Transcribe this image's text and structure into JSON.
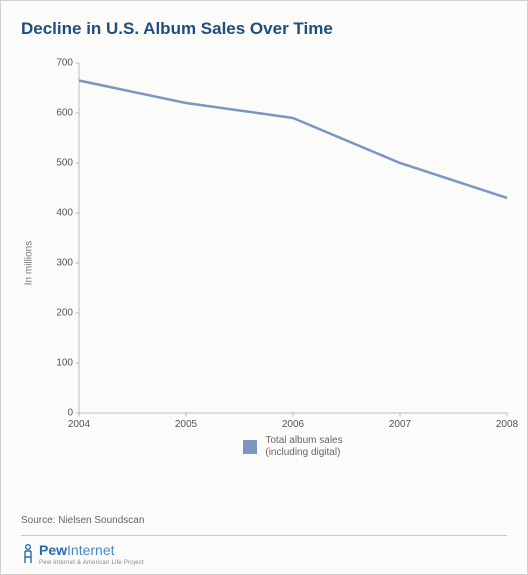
{
  "title": "Decline in U.S. Album Sales Over Time",
  "chart": {
    "type": "line",
    "ylabel": "In millions",
    "x_values": [
      2004,
      2005,
      2006,
      2007,
      2008
    ],
    "y_values": [
      665,
      620,
      590,
      500,
      430
    ],
    "xlim": [
      2004,
      2008
    ],
    "ylim": [
      0,
      700
    ],
    "xticks": [
      2004,
      2005,
      2006,
      2007,
      2008
    ],
    "yticks": [
      0,
      100,
      200,
      300,
      400,
      500,
      600,
      700
    ],
    "line_color": "#7a96c2",
    "line_width": 2.5,
    "axis_color": "#808080",
    "background_color": "#fbfbfa",
    "label_fontsize": 10,
    "label_color": "#555555"
  },
  "legend": {
    "swatch_color": "#7a96c2",
    "line1": "Total album sales",
    "line2": "(including digital)"
  },
  "source": "Source: Nielsen Soundscan",
  "footer": {
    "brand_pew": "Pew",
    "brand_internet": "Internet",
    "subtitle": "Pew Internet & American Life Project"
  }
}
